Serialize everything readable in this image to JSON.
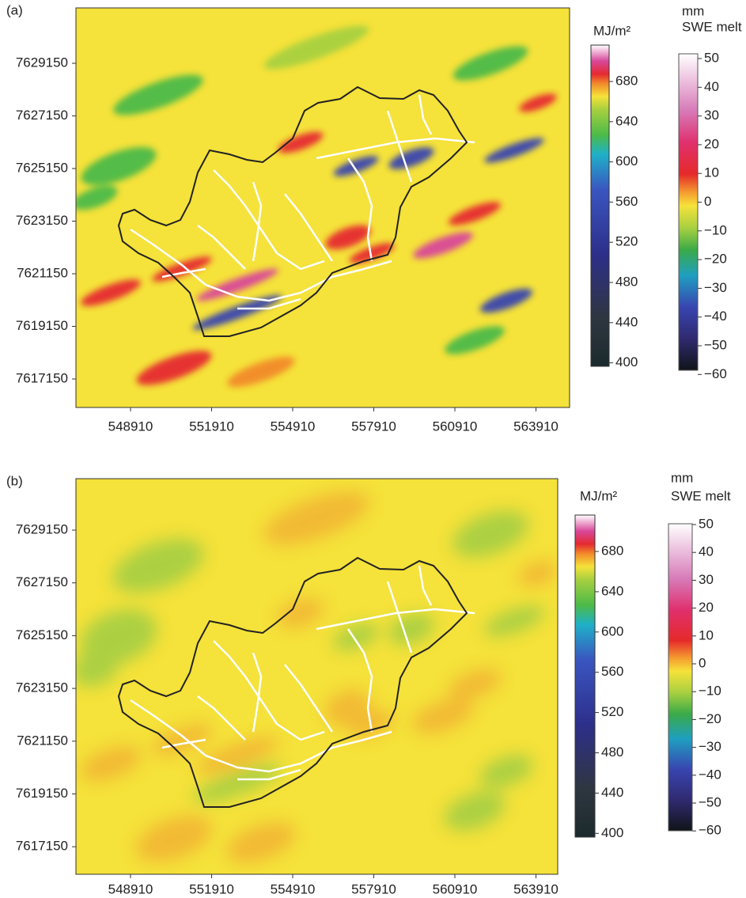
{
  "panels": [
    {
      "label": "(a)",
      "y_ticks": [
        7629150,
        7627150,
        7625150,
        7623150,
        7621150,
        7619150,
        7617150
      ],
      "x_ticks": [
        548910,
        551910,
        554910,
        557910,
        560910,
        563910
      ],
      "energy_colorbar": {
        "title": "MJ/m²",
        "ticks": [
          680,
          640,
          600,
          560,
          520,
          480,
          440,
          400
        ]
      },
      "melt_colorbar": {
        "unit": "mm",
        "title": "SWE melt",
        "ticks": [
          "50",
          "40",
          "30",
          "20",
          "10",
          "0",
          "−10",
          "−20",
          "−30",
          "−40",
          "−50",
          "−60"
        ]
      }
    },
    {
      "label": "(b)",
      "y_ticks": [
        7629150,
        7627150,
        7625150,
        7623150,
        7621150,
        7619150,
        7617150
      ],
      "x_ticks": [
        548910,
        551910,
        554910,
        557910,
        560910,
        563910
      ],
      "energy_colorbar": {
        "title": "MJ/m²",
        "ticks": [
          680,
          640,
          600,
          560,
          520,
          480,
          440,
          400
        ]
      },
      "melt_colorbar": {
        "unit": "mm",
        "title": "SWE melt",
        "ticks": [
          "50",
          "40",
          "30",
          "20",
          "10",
          "0",
          "−10",
          "−20",
          "−30",
          "−40",
          "−50",
          "−60"
        ]
      }
    }
  ]
}
